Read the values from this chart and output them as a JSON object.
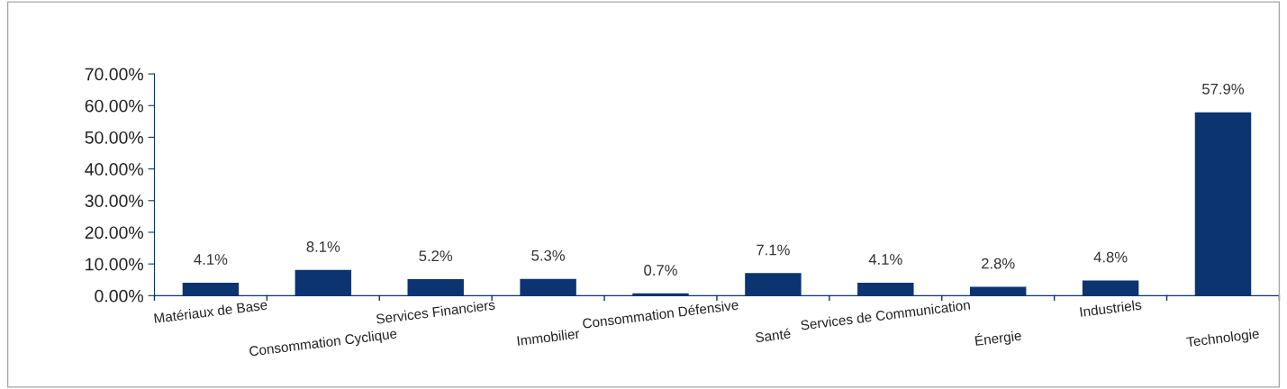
{
  "chart_data": {
    "type": "bar",
    "categories": [
      "Matériaux de Base",
      "Consommation Cyclique",
      "Services Financiers",
      "Immobilier",
      "Consommation Défensive",
      "Santé",
      "Services de Communication",
      "Énergie",
      "Industriels",
      "Technologie"
    ],
    "values": [
      4.1,
      8.1,
      5.2,
      5.3,
      0.7,
      7.1,
      4.1,
      2.8,
      4.8,
      57.9
    ],
    "value_labels": [
      "4.1%",
      "8.1%",
      "5.2%",
      "5.3%",
      "0.7%",
      "7.1%",
      "4.1%",
      "2.8%",
      "4.8%",
      "57.9%"
    ],
    "color": "#0b3470",
    "ylim": [
      0,
      70
    ],
    "yticks": [
      {
        "value": 0,
        "label": "0.00%"
      },
      {
        "value": 10,
        "label": "10.00%"
      },
      {
        "value": 20,
        "label": "20.00%"
      },
      {
        "value": 30,
        "label": "30.00%"
      },
      {
        "value": 40,
        "label": "40.00%"
      },
      {
        "value": 50,
        "label": "50.00%"
      },
      {
        "value": 60,
        "label": "60.00%"
      },
      {
        "value": 70,
        "label": "70.00%"
      }
    ],
    "grid": false,
    "legend": false
  }
}
